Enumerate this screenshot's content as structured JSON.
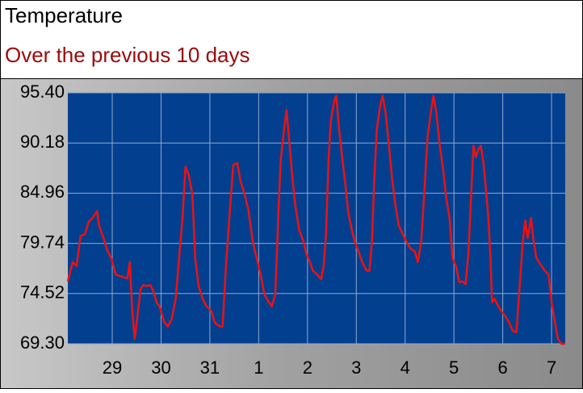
{
  "chart_data": {
    "type": "line",
    "title": "Temperature",
    "subtitle": "Over the previous 10 days",
    "color": "#ee1111",
    "grid": true,
    "xlim": [
      28.09,
      38.28
    ],
    "xticks": [
      29,
      30,
      31,
      {
        "value": 32,
        "label": "1"
      },
      {
        "value": 33,
        "label": "2"
      },
      {
        "value": 34,
        "label": "3"
      },
      {
        "value": 35,
        "label": "4"
      },
      {
        "value": 36,
        "label": "5"
      },
      {
        "value": 37,
        "label": "6"
      },
      {
        "value": 38,
        "label": "7"
      }
    ],
    "ylim": [
      69.3,
      95.4
    ],
    "yticks": [
      {
        "value": 69.3,
        "label": "69.30"
      },
      74.52,
      79.74,
      84.96,
      90.18,
      {
        "value": 95.4,
        "label": "95.40"
      }
    ],
    "x": [
      28.09,
      28.19,
      28.27,
      28.35,
      28.44,
      28.52,
      28.6,
      28.69,
      28.73,
      28.82,
      28.9,
      28.98,
      29.07,
      29.18,
      29.31,
      29.36,
      29.41,
      29.46,
      29.51,
      29.58,
      29.64,
      29.71,
      29.78,
      29.84,
      29.91,
      29.97,
      30.06,
      30.14,
      30.22,
      30.3,
      30.37,
      30.44,
      30.5,
      30.57,
      30.64,
      30.7,
      30.77,
      30.85,
      30.93,
      31.03,
      31.1,
      31.2,
      31.26,
      31.33,
      31.41,
      31.48,
      31.56,
      31.63,
      31.71,
      31.79,
      31.88,
      31.96,
      32.04,
      32.12,
      32.21,
      32.27,
      32.34,
      32.4,
      32.45,
      32.52,
      32.57,
      32.62,
      32.69,
      32.75,
      32.83,
      32.92,
      32.98,
      33.05,
      33.11,
      33.2,
      33.28,
      33.33,
      33.38,
      33.43,
      33.48,
      33.55,
      33.59,
      33.64,
      33.71,
      33.78,
      33.84,
      33.91,
      33.97,
      34.04,
      34.12,
      34.21,
      34.27,
      34.32,
      34.37,
      34.42,
      34.49,
      34.54,
      34.6,
      34.67,
      34.73,
      34.8,
      34.87,
      34.95,
      35.03,
      35.11,
      35.2,
      35.26,
      35.33,
      35.4,
      35.46,
      35.53,
      35.58,
      35.64,
      35.71,
      35.78,
      35.84,
      35.91,
      35.97,
      36.04,
      36.11,
      36.17,
      36.24,
      36.3,
      36.35,
      36.4,
      36.45,
      36.5,
      36.55,
      36.6,
      36.65,
      36.7,
      36.75,
      36.78,
      36.83,
      36.9,
      36.97,
      37.05,
      37.13,
      37.21,
      37.28,
      37.34,
      37.41,
      37.46,
      37.51,
      37.58,
      37.63,
      37.69,
      37.78,
      37.86,
      37.94,
      38.0,
      38.07,
      38.13,
      38.2,
      38.28
    ],
    "values": [
      75.8,
      77.8,
      77.4,
      80.5,
      80.7,
      82.0,
      82.4,
      83.1,
      81.6,
      80.3,
      79.0,
      78.2,
      76.5,
      76.3,
      76.1,
      77.8,
      72.7,
      69.8,
      71.9,
      75.0,
      75.4,
      75.3,
      75.4,
      74.8,
      73.6,
      73.2,
      71.6,
      71.1,
      71.9,
      74.0,
      78.2,
      82.4,
      87.7,
      86.8,
      84.9,
      78.2,
      75.3,
      74.0,
      73.2,
      72.7,
      71.5,
      71.1,
      71.1,
      77.4,
      83.2,
      87.9,
      88.1,
      86.2,
      84.9,
      83.2,
      79.9,
      78.2,
      76.5,
      74.4,
      73.6,
      73.2,
      74.4,
      82.4,
      88.3,
      91.6,
      93.6,
      90.8,
      86.6,
      83.7,
      81.1,
      79.9,
      78.6,
      77.8,
      76.9,
      76.5,
      76.0,
      77.4,
      80.7,
      88.3,
      92.6,
      94.6,
      95.1,
      92.0,
      88.7,
      85.7,
      82.8,
      81.1,
      79.9,
      79.0,
      77.8,
      76.9,
      76.9,
      79.9,
      86.6,
      91.6,
      94.1,
      95.1,
      93.3,
      89.9,
      86.6,
      83.7,
      81.6,
      80.7,
      79.9,
      79.2,
      78.9,
      77.8,
      79.9,
      85.7,
      90.8,
      93.5,
      95.1,
      93.3,
      89.9,
      87.4,
      84.5,
      82.4,
      78.2,
      77.4,
      75.7,
      75.8,
      75.5,
      79.0,
      84.5,
      89.9,
      88.7,
      89.5,
      89.9,
      88.3,
      85.7,
      82.8,
      78.2,
      73.6,
      74.0,
      73.3,
      72.7,
      72.2,
      71.5,
      70.6,
      70.5,
      74.8,
      79.9,
      82.1,
      80.3,
      82.4,
      80.0,
      78.2,
      77.5,
      76.9,
      76.5,
      73.6,
      71.5,
      69.8,
      69.3,
      69.3
    ]
  }
}
